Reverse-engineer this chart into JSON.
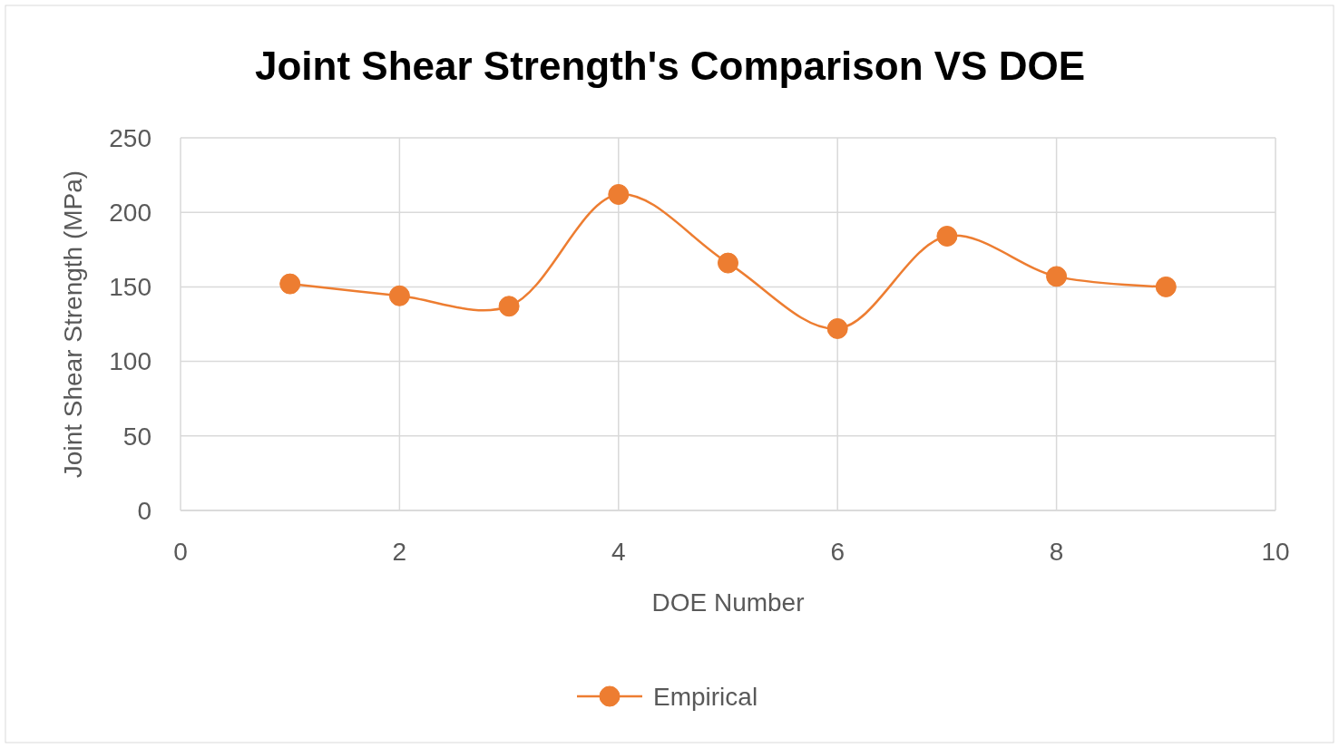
{
  "chart_data": {
    "type": "line",
    "title": "Joint Shear Strength's Comparison VS DOE",
    "xlabel": "DOE Number",
    "ylabel": "Joint Shear Strength (MPa)",
    "x": [
      1,
      2,
      3,
      4,
      5,
      6,
      7,
      8,
      9
    ],
    "series": [
      {
        "name": "Empirical",
        "color": "#ed7d31",
        "values": [
          152,
          144,
          137,
          212,
          166,
          122,
          184,
          157,
          150
        ]
      }
    ],
    "xlim": [
      0,
      10
    ],
    "xticks": [
      0,
      2,
      4,
      6,
      8,
      10
    ],
    "ylim": [
      0,
      250
    ],
    "yticks": [
      0,
      50,
      100,
      150,
      200,
      250
    ],
    "grid": true,
    "legend": "bottom",
    "marker": "circle",
    "line_style": "solid"
  }
}
